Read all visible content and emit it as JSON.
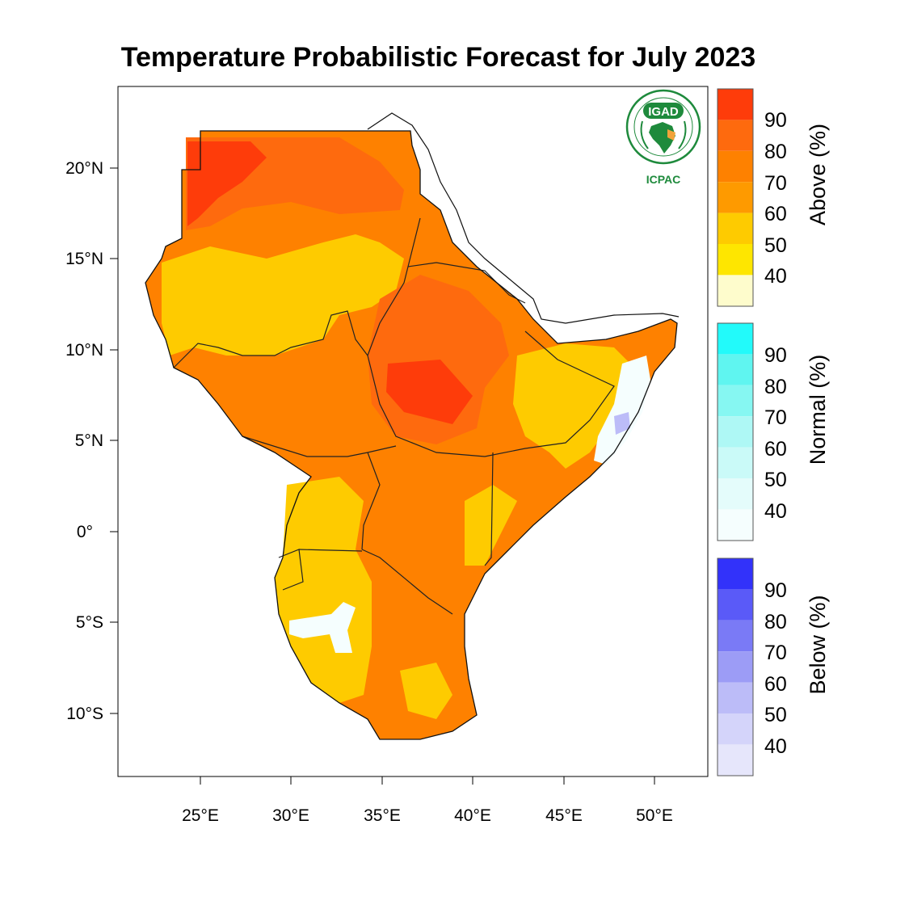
{
  "title": "Temperature Probabilistic Forecast for July 2023",
  "axes": {
    "lat_labels": [
      "20°N",
      "15°N",
      "10°N",
      "5°N",
      "0°",
      "5°S",
      "10°S"
    ],
    "lon_labels": [
      "25°E",
      "30°E",
      "35°E",
      "40°E",
      "45°E",
      "50°E"
    ]
  },
  "logo": {
    "badge_text": "IGAD",
    "caption": "ICPAC",
    "color": "#1e8a3c",
    "accent": "#f2a33a"
  },
  "legend": [
    {
      "name": "Above (%)",
      "labels": [
        "90",
        "80",
        "70",
        "60",
        "50",
        "40"
      ],
      "colors": [
        "#fe3c0a",
        "#fe6a0e",
        "#fe8100",
        "#fe9a00",
        "#fecb00",
        "#fee600",
        "#fefccc"
      ]
    },
    {
      "name": "Normal (%)",
      "labels": [
        "90",
        "80",
        "70",
        "60",
        "50",
        "40"
      ],
      "colors": [
        "#22fafa",
        "#5ff5f0",
        "#86f7f2",
        "#aef8f5",
        "#cafaf8",
        "#e4fcfb",
        "#f5fefe"
      ]
    },
    {
      "name": "Below (%)",
      "labels": [
        "90",
        "80",
        "70",
        "60",
        "50",
        "40"
      ],
      "colors": [
        "#3232fa",
        "#5a5af8",
        "#7a7af6",
        "#9c9cf6",
        "#bcbcf8",
        "#d4d4fa",
        "#e6e6fb"
      ]
    }
  ]
}
